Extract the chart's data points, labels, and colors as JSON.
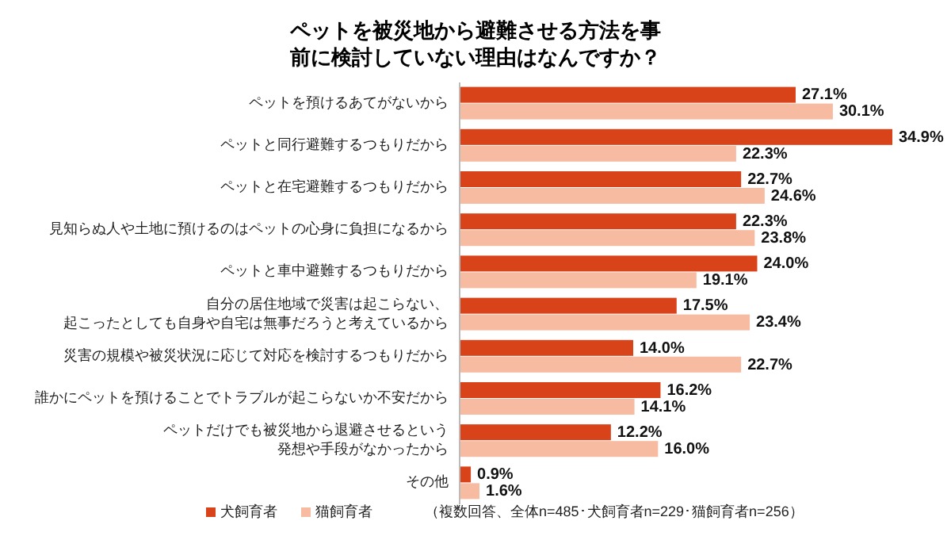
{
  "chart_data": {
    "type": "bar",
    "orientation": "horizontal",
    "title": "ペットを被災地から避難させる方法を事前に検討していない理由はなんですか？",
    "categories": [
      "ペットを預けるあてがないから",
      "ペットと同行避難するつもりだから",
      "ペットと在宅避難するつもりだから",
      "見知らぬ人や土地に預けるのはペットの心身に負担になるから",
      "ペットと車中避難するつもりだから",
      "自分の居住地域で災害は起こらない、起こったとしても自身や自宅は無事だろうと考えているから",
      "災害の規模や被災状況に応じて対応を検討するつもりだから",
      "誰かにペットを預けることでトラブルが起こらないか不安だから",
      "ペットだけでも被災地から退避させるという発想や手段がなかったから",
      "その他"
    ],
    "series": [
      {
        "name": "犬飼育者",
        "color": "#d9431a",
        "values": [
          27.1,
          34.9,
          22.7,
          22.3,
          24.0,
          17.5,
          14.0,
          16.2,
          12.2,
          0.9
        ],
        "value_labels": [
          "27.1%",
          "34.9%",
          "22.7%",
          "22.3%",
          "24.0%",
          "17.5%",
          "14.0%",
          "16.2%",
          "12.2%",
          "0.9%"
        ]
      },
      {
        "name": "猫飼育者",
        "color": "#f7bba1",
        "values": [
          30.1,
          22.3,
          24.6,
          23.8,
          19.1,
          23.4,
          22.7,
          14.1,
          16.0,
          1.6
        ],
        "value_labels": [
          "30.1%",
          "22.3%",
          "24.6%",
          "23.8%",
          "19.1%",
          "23.4%",
          "22.7%",
          "14.1%",
          "16.0%",
          "1.6%"
        ]
      }
    ],
    "legend": "bottom",
    "annotations": [
      "（複数回答、全体n=485･犬飼育者n=229･猫飼育者n=256）"
    ]
  }
}
